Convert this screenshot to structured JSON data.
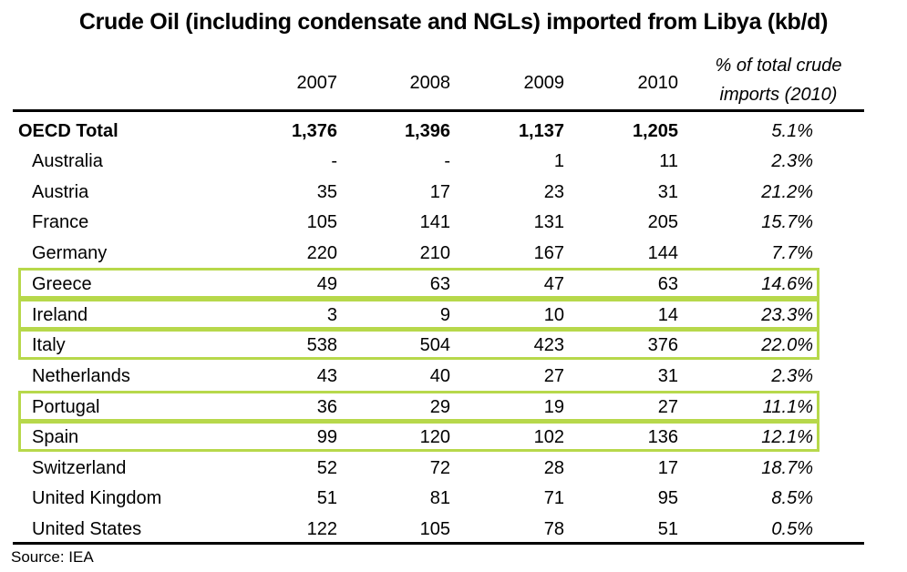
{
  "title": "Crude Oil (including condensate and NGLs) imported from Libya (kb/d)",
  "columns": [
    "2007",
    "2008",
    "2009",
    "2010"
  ],
  "pct_header_line1": "% of total crude",
  "pct_header_line2": "imports (2010)",
  "highlight_color": "#b7d84b",
  "rows": [
    {
      "name": "OECD Total",
      "v": [
        "1,376",
        "1,396",
        "1,137",
        "1,205"
      ],
      "pct": "5.1%",
      "bold": true,
      "highlight": false
    },
    {
      "name": "Australia",
      "v": [
        "-",
        "-",
        "1",
        "11"
      ],
      "pct": "2.3%",
      "highlight": false
    },
    {
      "name": "Austria",
      "v": [
        "35",
        "17",
        "23",
        "31"
      ],
      "pct": "21.2%",
      "highlight": false
    },
    {
      "name": "France",
      "v": [
        "105",
        "141",
        "131",
        "205"
      ],
      "pct": "15.7%",
      "highlight": false
    },
    {
      "name": "Germany",
      "v": [
        "220",
        "210",
        "167",
        "144"
      ],
      "pct": "7.7%",
      "highlight": false
    },
    {
      "name": "Greece",
      "v": [
        "49",
        "63",
        "47",
        "63"
      ],
      "pct": "14.6%",
      "highlight": true
    },
    {
      "name": "Ireland",
      "v": [
        "3",
        "9",
        "10",
        "14"
      ],
      "pct": "23.3%",
      "highlight": true
    },
    {
      "name": "Italy",
      "v": [
        "538",
        "504",
        "423",
        "376"
      ],
      "pct": "22.0%",
      "highlight": true
    },
    {
      "name": "Netherlands",
      "v": [
        "43",
        "40",
        "27",
        "31"
      ],
      "pct": "2.3%",
      "highlight": false
    },
    {
      "name": "Portugal",
      "v": [
        "36",
        "29",
        "19",
        "27"
      ],
      "pct": "11.1%",
      "highlight": true
    },
    {
      "name": "Spain",
      "v": [
        "99",
        "120",
        "102",
        "136"
      ],
      "pct": "12.1%",
      "highlight": true
    },
    {
      "name": "Switzerland",
      "v": [
        "52",
        "72",
        "28",
        "17"
      ],
      "pct": "18.7%",
      "highlight": false
    },
    {
      "name": "United Kingdom",
      "v": [
        "51",
        "81",
        "71",
        "95"
      ],
      "pct": "8.5%",
      "highlight": false
    },
    {
      "name": "United States",
      "v": [
        "122",
        "105",
        "78",
        "51"
      ],
      "pct": "0.5%",
      "highlight": false
    }
  ],
  "source": "Source: IEA"
}
